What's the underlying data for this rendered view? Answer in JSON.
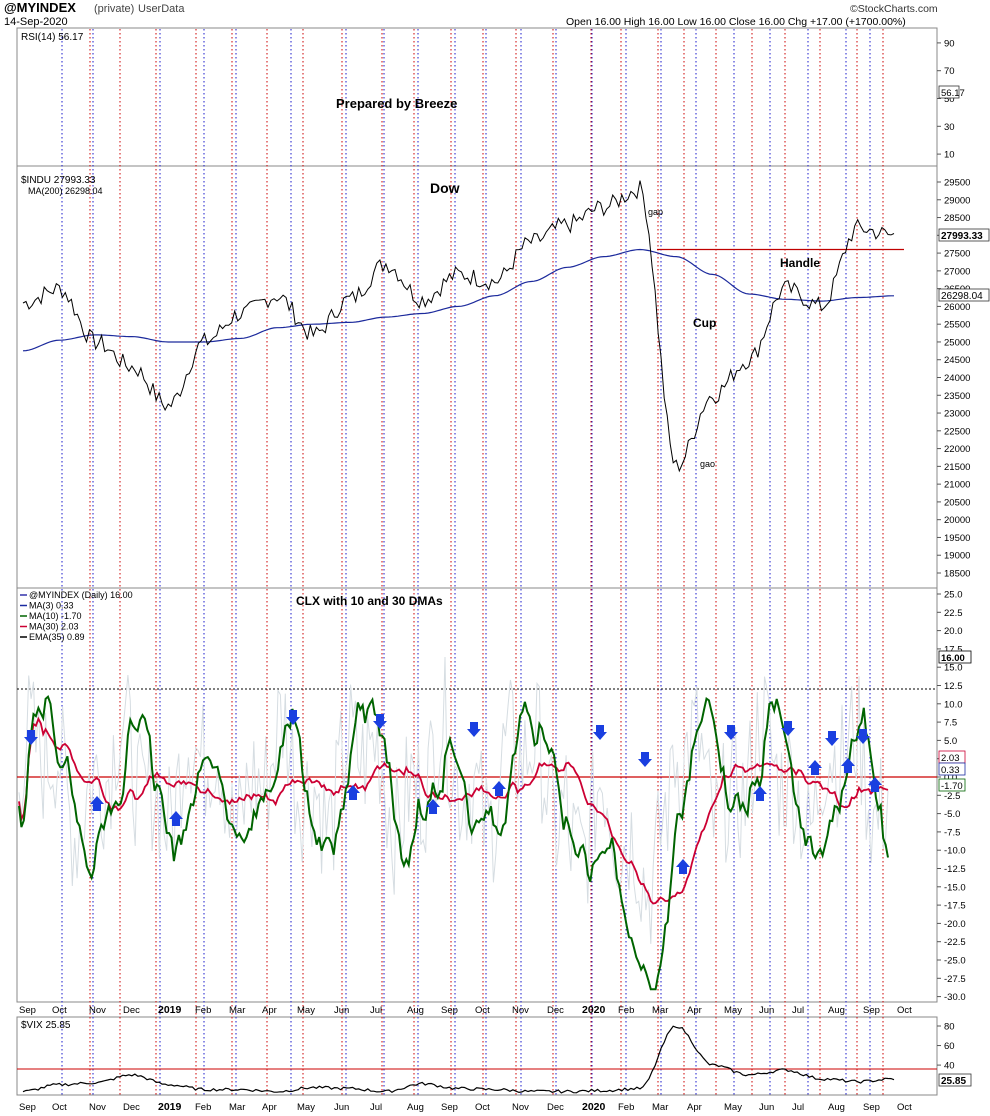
{
  "header": {
    "symbol": "@MYINDEX",
    "owner": "(private)",
    "data_source": "UserData",
    "date": "14-Sep-2020",
    "ohlc": "Open 16.00  High 16.00  Low 16.00  Close 16.00  Chg +17.00 (+1700.00%)",
    "brand": "©StockCharts.com",
    "brand_color": "#0033cc"
  },
  "colors": {
    "price": "#000000",
    "ma200": "#1c2a9c",
    "handle_line": "#c00000",
    "ma10": "#006400",
    "ma30": "#cc0033",
    "raw_series": "#d6dde2",
    "arrow": "#1a3fe0",
    "annotation_blue": "#1a2fcc",
    "annotation_red": "#cc0000",
    "grid_blue": "#1a1acc",
    "grid_red": "#cc0000"
  },
  "x_axis": {
    "months": [
      "Sep",
      "Oct",
      "Nov",
      "Dec",
      "2019",
      "Feb",
      "Mar",
      "Apr",
      "May",
      "Jun",
      "Jul",
      "Aug",
      "Sep",
      "Oct",
      "Nov",
      "Dec",
      "2020",
      "Feb",
      "Mar",
      "Apr",
      "May",
      "Jun",
      "Jul",
      "Aug",
      "Sep",
      "Oct"
    ],
    "bold_labels": [
      "2019",
      "2020"
    ]
  },
  "rsi_panel": {
    "legend": "RSI(14) 56.17",
    "value_badge": "56.17",
    "y_ticks": [
      "90",
      "70",
      "50",
      "30",
      "10"
    ],
    "note": "Prepared by Breeze"
  },
  "dow_panel": {
    "legend_price": "$INDU 27993.33",
    "legend_ma": "MA(200) 26298.04",
    "title": "Dow",
    "last_badge": "27993.33",
    "ma_badge": "26298.04",
    "y_ticks": [
      "29500",
      "29000",
      "28500",
      "28000",
      "27500",
      "27000",
      "26500",
      "26000",
      "25500",
      "25000",
      "24500",
      "24000",
      "23500",
      "23000",
      "22500",
      "22000",
      "21500",
      "21000",
      "20500",
      "20000",
      "19500",
      "19000",
      "18500"
    ],
    "annotations": {
      "gap": "gap",
      "gao": "gao",
      "cup": "Cup",
      "handle": "Handle"
    }
  },
  "clx_panel": {
    "title": "CLX with 10 and 30 DMAs",
    "legend": [
      "@MYINDEX (Daily) 16.00",
      "MA(3) 0.33",
      "MA(10) -1.70",
      "MA(30) 2.03",
      "EMA(35) 0.89"
    ],
    "badges": [
      "16.00",
      "2.03",
      "0.33",
      "-1.70"
    ],
    "y_ticks": [
      "25.0",
      "22.5",
      "20.0",
      "17.5",
      "15.0",
      "12.5",
      "10.0",
      "7.5",
      "5.0",
      "2.5",
      "0.0",
      "-2.5",
      "-5.0",
      "-7.5",
      "-10.0",
      "-12.5",
      "-15.0",
      "-17.5",
      "-20.0",
      "-22.5",
      "-25.0",
      "-27.5",
      "-30.0"
    ]
  },
  "vix_panel": {
    "legend": "$VIX 25.85",
    "value_badge": "25.85",
    "y_ticks": [
      "80",
      "60",
      "40"
    ]
  },
  "chart_data": [
    {
      "type": "line",
      "title": "RSI(14)",
      "ylim": [
        0,
        100
      ],
      "series": [
        {
          "name": "RSI(14)",
          "last": 56.17
        }
      ]
    },
    {
      "type": "line",
      "title": "$INDU",
      "ylim": [
        18000,
        29800
      ],
      "x": [
        "2018-09",
        "2018-10",
        "2018-11",
        "2018-12",
        "2019-01",
        "2019-02",
        "2019-03",
        "2019-04",
        "2019-05",
        "2019-06",
        "2019-07",
        "2019-08",
        "2019-09",
        "2019-10",
        "2019-11",
        "2019-12",
        "2020-01",
        "2020-02",
        "2020-03",
        "2020-04",
        "2020-05",
        "2020-06",
        "2020-07",
        "2020-08",
        "2020-09"
      ],
      "series": [
        {
          "name": "$INDU",
          "values": [
            26100,
            26500,
            25000,
            24300,
            23200,
            25000,
            25800,
            26300,
            25200,
            26200,
            27200,
            26200,
            26900,
            26700,
            27800,
            28300,
            28800,
            29300,
            21500,
            23500,
            24500,
            26500,
            26000,
            28200,
            27993.33
          ]
        },
        {
          "name": "MA(200)",
          "values": [
            24750,
            25050,
            25200,
            25150,
            25000,
            25000,
            25100,
            25400,
            25500,
            25550,
            25700,
            25800,
            26000,
            26300,
            26700,
            27100,
            27400,
            27600,
            27400,
            26900,
            26350,
            26200,
            26150,
            26250,
            26298.04
          ]
        }
      ],
      "reference_line": 27600
    },
    {
      "type": "line",
      "title": "@MYINDEX",
      "ylim": [
        -30,
        25
      ],
      "series": [
        {
          "name": "@MYINDEX (Daily)",
          "last": 16.0
        },
        {
          "name": "MA(3)",
          "last": 0.33
        },
        {
          "name": "MA(10)",
          "last": -1.7
        },
        {
          "name": "MA(30)",
          "last": 2.03
        },
        {
          "name": "EMA(35)",
          "last": 0.89
        }
      ],
      "reference_lines": [
        12.0,
        0.0
      ]
    },
    {
      "type": "line",
      "title": "$VIX",
      "ylim": [
        10,
        85
      ],
      "x": [
        "2018-09",
        "2018-10",
        "2018-11",
        "2018-12",
        "2019-01",
        "2019-02",
        "2019-03",
        "2019-04",
        "2019-05",
        "2019-06",
        "2019-07",
        "2019-08",
        "2019-09",
        "2019-10",
        "2019-11",
        "2019-12",
        "2020-01",
        "2020-02",
        "2020-03",
        "2020-04",
        "2020-05",
        "2020-06",
        "2020-07",
        "2020-08",
        "2020-09"
      ],
      "series": [
        {
          "name": "$VIX",
          "values": [
            13,
            20,
            22,
            30,
            20,
            15,
            15,
            13,
            17,
            16,
            13,
            21,
            16,
            15,
            13,
            13,
            14,
            16,
            80,
            40,
            30,
            35,
            26,
            23,
            25.85
          ]
        }
      ],
      "reference_line": 36
    }
  ]
}
